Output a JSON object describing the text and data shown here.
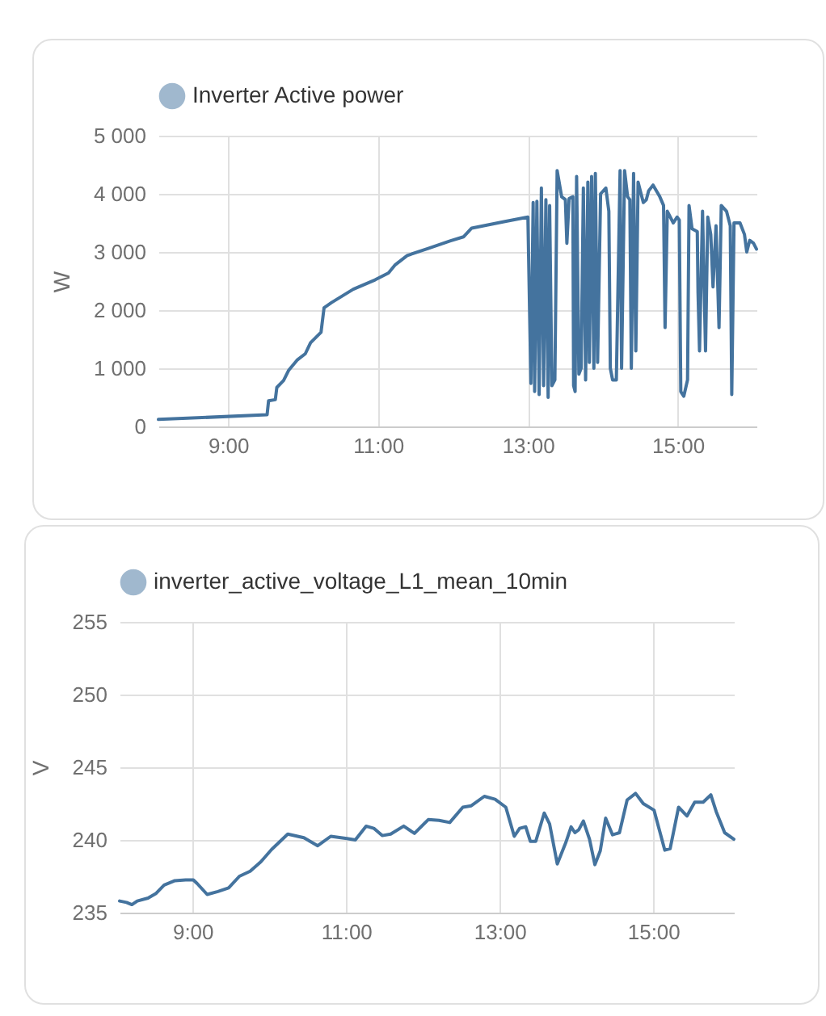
{
  "chart_data": [
    {
      "type": "line",
      "ylabel": "W",
      "legend": "top",
      "grid": true,
      "marker": "none",
      "line_style": "solid",
      "xlim": [
        8.07,
        16.05
      ],
      "xticks": [
        {
          "value": 9,
          "label": "9:00"
        },
        {
          "value": 11,
          "label": "11:00"
        },
        {
          "value": 13,
          "label": "13:00"
        },
        {
          "value": 15,
          "label": "15:00"
        }
      ],
      "ylim": [
        0,
        5000
      ],
      "yticks": [
        {
          "value": 0,
          "label": "0"
        },
        {
          "value": 1000,
          "label": "1 000"
        },
        {
          "value": 2000,
          "label": "2 000"
        },
        {
          "value": 3000,
          "label": "3 000"
        },
        {
          "value": 4000,
          "label": "4 000"
        },
        {
          "value": 5000,
          "label": "5 000"
        }
      ],
      "series": [
        {
          "name": "Inverter Active power",
          "color": "#44739e",
          "x": [
            8.07,
            9.52,
            9.54,
            9.63,
            9.65,
            9.74,
            9.81,
            9.92,
            10.03,
            10.1,
            10.24,
            10.28,
            10.38,
            10.67,
            10.96,
            11.14,
            11.23,
            11.39,
            11.67,
            11.96,
            12.14,
            12.25,
            12.68,
            13.0,
            13.04,
            13.07,
            13.09,
            13.12,
            13.15,
            13.18,
            13.21,
            13.24,
            13.27,
            13.29,
            13.32,
            13.36,
            13.39,
            13.45,
            13.5,
            13.52,
            13.55,
            13.6,
            13.61,
            13.63,
            13.65,
            13.68,
            13.71,
            13.74,
            13.77,
            13.8,
            13.82,
            13.85,
            13.88,
            13.9,
            13.93,
            13.97,
            14.04,
            14.08,
            14.1,
            14.13,
            14.18,
            14.23,
            14.25,
            14.29,
            14.33,
            14.36,
            14.38,
            14.41,
            14.44,
            14.47,
            14.51,
            14.54,
            14.58,
            14.61,
            14.67,
            14.76,
            14.81,
            14.83,
            14.86,
            14.94,
            14.99,
            15.02,
            15.04,
            15.08,
            15.13,
            15.15,
            15.19,
            15.26,
            15.27,
            15.29,
            15.33,
            15.37,
            15.4,
            15.44,
            15.47,
            15.51,
            15.55,
            15.58,
            15.65,
            15.7,
            15.72,
            15.75,
            15.83,
            15.89,
            15.92,
            15.96,
            16.01,
            16.05
          ],
          "values": [
            120,
            200,
            440,
            460,
            670,
            790,
            970,
            1140,
            1250,
            1440,
            1620,
            2040,
            2130,
            2360,
            2520,
            2640,
            2780,
            2940,
            3060,
            3190,
            3260,
            3410,
            3520,
            3600,
            740,
            3850,
            600,
            3870,
            550,
            4100,
            700,
            3900,
            500,
            3800,
            700,
            800,
            4400,
            3950,
            3900,
            3150,
            3920,
            3950,
            700,
            600,
            4300,
            900,
            1000,
            4100,
            800,
            4200,
            1100,
            4300,
            1000,
            4350,
            1100,
            4000,
            4100,
            3700,
            1000,
            800,
            800,
            4400,
            1000,
            4400,
            3950,
            3900,
            1000,
            4350,
            1300,
            4200,
            4000,
            3850,
            3900,
            4050,
            4150,
            3950,
            3800,
            1700,
            3700,
            3500,
            3600,
            3550,
            600,
            520,
            800,
            3800,
            3400,
            3350,
            2300,
            1300,
            3700,
            1300,
            3600,
            3300,
            2400,
            3450,
            1700,
            3800,
            3700,
            3450,
            550,
            3500,
            3500,
            3300,
            3000,
            3200,
            3150,
            3050
          ]
        }
      ]
    },
    {
      "type": "line",
      "ylabel": "V",
      "legend": "top",
      "grid": true,
      "marker": "none",
      "line_style": "solid",
      "xlim": [
        8.05,
        16.05
      ],
      "xticks": [
        {
          "value": 9,
          "label": "9:00"
        },
        {
          "value": 11,
          "label": "11:00"
        },
        {
          "value": 13,
          "label": "13:00"
        },
        {
          "value": 15,
          "label": "15:00"
        }
      ],
      "ylim": [
        235,
        255
      ],
      "yticks": [
        235,
        240,
        245,
        250,
        255
      ],
      "series": [
        {
          "name": "inverter_active_voltage_L1_mean_10min",
          "color": "#44739e",
          "x": [
            8.05,
            8.14,
            8.21,
            8.28,
            8.42,
            8.52,
            8.63,
            8.77,
            8.91,
            9.01,
            9.06,
            9.19,
            9.33,
            9.47,
            9.61,
            9.75,
            9.89,
            10.03,
            10.24,
            10.45,
            10.63,
            10.8,
            11.01,
            11.12,
            11.26,
            11.36,
            11.47,
            11.58,
            11.75,
            11.89,
            12.07,
            12.21,
            12.35,
            12.52,
            12.63,
            12.8,
            12.94,
            13.08,
            13.19,
            13.26,
            13.34,
            13.4,
            13.47,
            13.58,
            13.65,
            13.75,
            13.86,
            13.93,
            13.98,
            14.03,
            14.09,
            14.17,
            14.24,
            14.31,
            14.38,
            14.47,
            14.56,
            14.66,
            14.77,
            14.87,
            15.01,
            15.15,
            15.22,
            15.33,
            15.44,
            15.54,
            15.65,
            15.75,
            15.82,
            15.93,
            16.05
          ],
          "values": [
            235.8,
            235.7,
            235.55,
            235.8,
            236.0,
            236.3,
            236.9,
            237.2,
            237.25,
            237.25,
            237.0,
            236.25,
            236.45,
            236.7,
            237.5,
            237.85,
            238.5,
            239.35,
            240.4,
            240.15,
            239.6,
            240.25,
            240.1,
            240.0,
            240.95,
            240.8,
            240.3,
            240.4,
            240.95,
            240.45,
            241.4,
            241.35,
            241.2,
            242.25,
            242.35,
            243.0,
            242.8,
            242.25,
            240.25,
            240.8,
            240.9,
            239.9,
            239.9,
            241.85,
            241.1,
            238.35,
            239.8,
            240.9,
            240.5,
            240.7,
            241.3,
            240.05,
            238.3,
            239.25,
            241.5,
            240.35,
            240.5,
            242.75,
            243.2,
            242.5,
            242.05,
            239.3,
            239.4,
            242.25,
            241.65,
            242.6,
            242.6,
            243.1,
            241.95,
            240.5,
            240.05
          ]
        }
      ]
    }
  ]
}
